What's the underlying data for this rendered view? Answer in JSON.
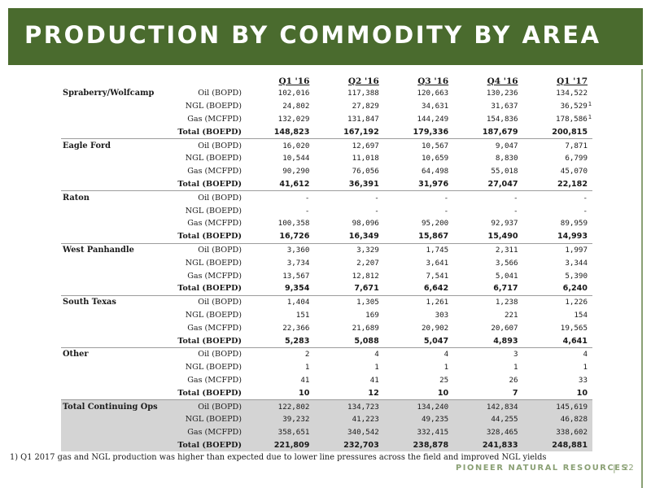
{
  "title": "PRODUCTION BY COMMODITY BY AREA",
  "columns": [
    "Q1 '16",
    "Q2 '16",
    "Q3 '16",
    "Q4 '16",
    "Q1 '17"
  ],
  "areas": [
    {
      "name": "Spraberry/Wolfcamp",
      "rows": [
        {
          "label": "Oil (BOPD)",
          "values": [
            "102,016",
            "117,388",
            "120,663",
            "130,236",
            "134,522"
          ]
        },
        {
          "label": "NGL (BOEPD)",
          "values": [
            "24,802",
            "27,829",
            "34,631",
            "31,637",
            "36,529"
          ],
          "note": "1"
        },
        {
          "label": "Gas (MCFPD)",
          "values": [
            "132,029",
            "131,847",
            "144,249",
            "154,836",
            "178,586"
          ],
          "note": "1"
        },
        {
          "label": "Total (BOEPD)",
          "values": [
            "148,823",
            "167,192",
            "179,336",
            "187,679",
            "200,815"
          ],
          "total": true
        }
      ]
    },
    {
      "name": "Eagle Ford",
      "rows": [
        {
          "label": "Oil (BOPD)",
          "values": [
            "16,020",
            "12,697",
            "10,567",
            "9,047",
            "7,871"
          ]
        },
        {
          "label": "NGL (BOEPD)",
          "values": [
            "10,544",
            "11,018",
            "10,659",
            "8,830",
            "6,799"
          ]
        },
        {
          "label": "Gas (MCFPD)",
          "values": [
            "90,290",
            "76,056",
            "64,498",
            "55,018",
            "45,070"
          ]
        },
        {
          "label": "Total (BOEPD)",
          "values": [
            "41,612",
            "36,391",
            "31,976",
            "27,047",
            "22,182"
          ],
          "total": true
        }
      ]
    },
    {
      "name": "Raton",
      "rows": [
        {
          "label": "Oil (BOPD)",
          "values": [
            "-",
            "-",
            "-",
            "-",
            "-"
          ]
        },
        {
          "label": "NGL (BOEPD)",
          "values": [
            "-",
            "-",
            "-",
            "-",
            "-"
          ]
        },
        {
          "label": "Gas (MCFPD)",
          "values": [
            "100,358",
            "98,096",
            "95,200",
            "92,937",
            "89,959"
          ]
        },
        {
          "label": "Total (BOEPD)",
          "values": [
            "16,726",
            "16,349",
            "15,867",
            "15,490",
            "14,993"
          ],
          "total": true
        }
      ]
    },
    {
      "name": "West Panhandle",
      "rows": [
        {
          "label": "Oil (BOPD)",
          "values": [
            "3,360",
            "3,329",
            "1,745",
            "2,311",
            "1,997"
          ]
        },
        {
          "label": "NGL (BOEPD)",
          "values": [
            "3,734",
            "2,207",
            "3,641",
            "3,566",
            "3,344"
          ]
        },
        {
          "label": "Gas (MCFPD)",
          "values": [
            "13,567",
            "12,812",
            "7,541",
            "5,041",
            "5,390"
          ]
        },
        {
          "label": "Total (BOEPD)",
          "values": [
            "9,354",
            "7,671",
            "6,642",
            "6,717",
            "6,240"
          ],
          "total": true
        }
      ]
    },
    {
      "name": "South Texas",
      "rows": [
        {
          "label": "Oil (BOPD)",
          "values": [
            "1,404",
            "1,305",
            "1,261",
            "1,238",
            "1,226"
          ]
        },
        {
          "label": "NGL (BOEPD)",
          "values": [
            "151",
            "169",
            "303",
            "221",
            "154"
          ]
        },
        {
          "label": "Gas (MCFPD)",
          "values": [
            "22,366",
            "21,689",
            "20,902",
            "20,607",
            "19,565"
          ]
        },
        {
          "label": "Total (BOEPD)",
          "values": [
            "5,283",
            "5,088",
            "5,047",
            "4,893",
            "4,641"
          ],
          "total": true
        }
      ]
    },
    {
      "name": "Other",
      "rows": [
        {
          "label": "Oil (BOPD)",
          "values": [
            "2",
            "4",
            "4",
            "3",
            "4"
          ]
        },
        {
          "label": "NGL (BOEPD)",
          "values": [
            "1",
            "1",
            "1",
            "1",
            "1"
          ]
        },
        {
          "label": "Gas (MCFPD)",
          "values": [
            "41",
            "41",
            "25",
            "26",
            "33"
          ]
        },
        {
          "label": "Total (BOEPD)",
          "values": [
            "10",
            "12",
            "10",
            "7",
            "10"
          ],
          "total": true
        }
      ]
    },
    {
      "name": "Total Continuing Ops",
      "grand": true,
      "rows": [
        {
          "label": "Oil (BOPD)",
          "values": [
            "122,802",
            "134,723",
            "134,240",
            "142,834",
            "145,619"
          ]
        },
        {
          "label": "NGL (BOEPD)",
          "values": [
            "39,232",
            "41,223",
            "49,235",
            "44,255",
            "46,828"
          ]
        },
        {
          "label": "Gas (MCFPD)",
          "values": [
            "358,651",
            "340,542",
            "332,415",
            "328,465",
            "338,602"
          ]
        },
        {
          "label": "Total (BOEPD)",
          "values": [
            "221,809",
            "232,703",
            "238,878",
            "241,833",
            "248,881"
          ],
          "total": true
        }
      ]
    }
  ],
  "footnote": "1) Q1 2017 gas and NGL production was higher than expected due to lower line pressures across the field and improved NGL yields",
  "footer": {
    "brand": "PIONEER NATURAL RESOURCES",
    "separator": "|",
    "page": "22"
  },
  "colors": {
    "banner": "#4a6b2e",
    "accent": "#8aa074",
    "grand_total_bg": "#d4d4d4"
  }
}
